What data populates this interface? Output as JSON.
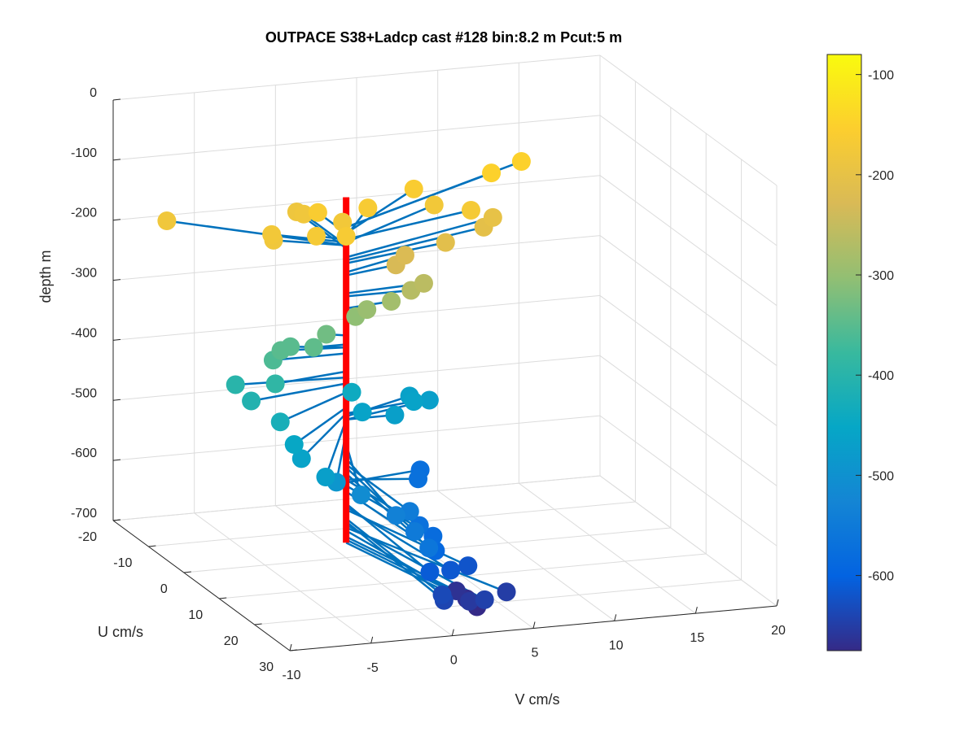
{
  "chart_data": {
    "type": "scatter",
    "title": "OUTPACE S38+Ladcp cast #128 bin:8.2 m  Pcut:5 m",
    "xlabel": "V cm/s",
    "ylabel": "U cm/s",
    "zlabel": "depth m",
    "xlim": [
      -10,
      20
    ],
    "ylim": [
      -20,
      30
    ],
    "zlim": [
      -700,
      0
    ],
    "xticks": [
      "-10",
      "-5",
      "0",
      "5",
      "10",
      "15",
      "20"
    ],
    "yticks": [
      "-20",
      "-10",
      "0",
      "10",
      "20",
      "30"
    ],
    "zticks": [
      "0",
      "-100",
      "-200",
      "-300",
      "-400",
      "-500",
      "-600",
      "-700"
    ],
    "grid": true,
    "colorbar": {
      "ticks": [
        "-100",
        "-200",
        "-300",
        "-400",
        "-500",
        "-600"
      ],
      "range": [
        -675,
        -80
      ],
      "colormap": "parula"
    },
    "profile_line": {
      "color": "#ff0000",
      "depth_range": [
        -100,
        -675
      ]
    },
    "vector_color": "#0072bd",
    "points": [
      {
        "depth": -180,
        "v": -8.0,
        "u": -14
      },
      {
        "depth": -175,
        "v": -3.5,
        "u": -5
      },
      {
        "depth": -180,
        "v": -3.6,
        "u": -4
      },
      {
        "depth": -170,
        "v": -1.4,
        "u": -2
      },
      {
        "depth": -160,
        "v": 0.0,
        "u": -8
      },
      {
        "depth": -185,
        "v": 0.0,
        "u": -14
      },
      {
        "depth": -180,
        "v": 0.0,
        "u": -12
      },
      {
        "depth": -165,
        "v": 0.0,
        "u": 0
      },
      {
        "depth": -175,
        "v": 1.3,
        "u": -7
      },
      {
        "depth": -165,
        "v": 3.3,
        "u": -9
      },
      {
        "depth": -160,
        "v": 7.0,
        "u": -13
      },
      {
        "depth": -175,
        "v": 7.6,
        "u": -10
      },
      {
        "depth": -170,
        "v": 9.0,
        "u": -6
      },
      {
        "depth": -150,
        "v": 12.0,
        "u": -14
      },
      {
        "depth": -150,
        "v": 14.5,
        "u": -17
      },
      {
        "depth": -200,
        "v": 11.0,
        "u": -9
      },
      {
        "depth": -205,
        "v": 10.0,
        "u": -7
      },
      {
        "depth": -210,
        "v": 7.0,
        "u": -4
      },
      {
        "depth": -225,
        "v": 4.5,
        "u": -4
      },
      {
        "depth": -230,
        "v": 3.5,
        "u": -2
      },
      {
        "depth": -260,
        "v": 5.0,
        "u": -1
      },
      {
        "depth": -265,
        "v": 4.0,
        "u": 0
      },
      {
        "depth": -285,
        "v": 3.0,
        "u": -1
      },
      {
        "depth": -295,
        "v": 1.5,
        "u": -1
      },
      {
        "depth": -305,
        "v": 0.8,
        "u": -1
      },
      {
        "depth": -330,
        "v": -1.0,
        "u": -1
      },
      {
        "depth": -345,
        "v": -2.0,
        "u": 0
      },
      {
        "depth": -350,
        "v": -3.0,
        "u": -2
      },
      {
        "depth": -350,
        "v": -3.8,
        "u": -1
      },
      {
        "depth": -360,
        "v": -4.5,
        "u": 0
      },
      {
        "depth": -390,
        "v": -4.8,
        "u": 2
      },
      {
        "depth": -400,
        "v": -6.6,
        "u": -1
      },
      {
        "depth": -410,
        "v": -6.5,
        "u": 3
      },
      {
        "depth": -425,
        "v": -5.8,
        "u": 8
      },
      {
        "depth": -450,
        "v": -5.6,
        "u": 11
      },
      {
        "depth": -460,
        "v": -5.8,
        "u": 14
      },
      {
        "depth": -470,
        "v": -5.4,
        "u": 19
      },
      {
        "depth": -490,
        "v": -4.3,
        "u": 17
      },
      {
        "depth": -510,
        "v": -3.0,
        "u": 18
      },
      {
        "depth": -535,
        "v": -1.5,
        "u": 21
      },
      {
        "depth": -550,
        "v": -1.0,
        "u": 24
      },
      {
        "depth": -560,
        "v": -1.0,
        "u": 28
      },
      {
        "depth": -545,
        "v": 0.0,
        "u": 18
      },
      {
        "depth": -570,
        "v": 0.6,
        "u": 18
      },
      {
        "depth": -580,
        "v": 1.0,
        "u": 20
      },
      {
        "depth": -590,
        "v": 0.5,
        "u": 23
      },
      {
        "depth": -610,
        "v": -0.5,
        "u": 26
      },
      {
        "depth": -615,
        "v": 1.0,
        "u": 25
      },
      {
        "depth": -620,
        "v": 2.5,
        "u": 23
      },
      {
        "depth": -635,
        "v": -0.4,
        "u": 29
      },
      {
        "depth": -640,
        "v": -0.5,
        "u": 30
      },
      {
        "depth": -645,
        "v": 2.0,
        "u": 30
      },
      {
        "depth": -650,
        "v": 4.0,
        "u": 27
      },
      {
        "depth": -655,
        "v": 1.5,
        "u": 28
      },
      {
        "depth": -470,
        "v": 3.0,
        "u": 0
      },
      {
        "depth": -460,
        "v": 4.6,
        "u": -2
      },
      {
        "depth": -465,
        "v": 5.0,
        "u": -5
      },
      {
        "depth": -470,
        "v": 6.0,
        "u": -4
      },
      {
        "depth": -460,
        "v": 1.0,
        "u": 0
      },
      {
        "depth": -440,
        "v": 1.0,
        "u": -3
      },
      {
        "depth": -575,
        "v": 5.0,
        "u": -2
      },
      {
        "depth": -570,
        "v": 4.0,
        "u": 2
      },
      {
        "depth": -665,
        "v": 2.0,
        "u": 22
      },
      {
        "depth": -670,
        "v": 2.2,
        "u": 24
      },
      {
        "depth": -675,
        "v": 2.4,
        "u": 26
      }
    ]
  }
}
